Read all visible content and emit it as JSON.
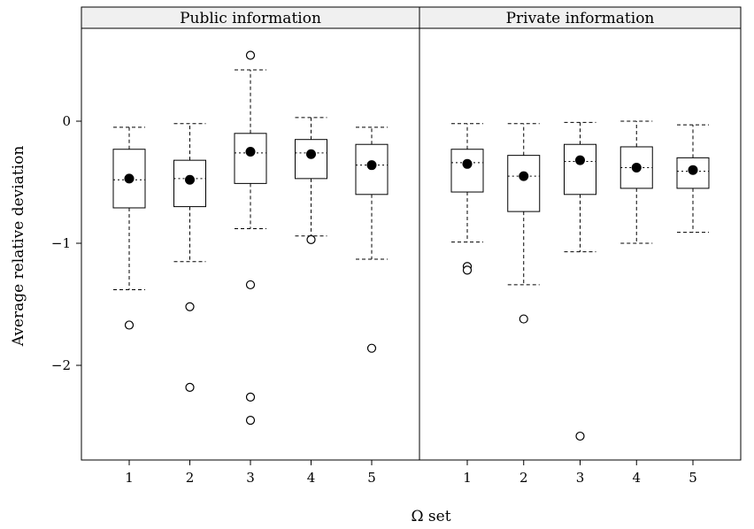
{
  "chart_data": {
    "type": "boxplot",
    "xlabel": "Ω set",
    "ylabel": "Average relative deviation",
    "ylim": [
      -2.8,
      0.75
    ],
    "y_ticks": [
      0,
      -1,
      -2
    ],
    "categories": [
      "1",
      "2",
      "3",
      "4",
      "5"
    ],
    "panels": [
      {
        "title": "Public information",
        "boxes": [
          {
            "category": "1",
            "whisker_low": -1.38,
            "q1": -0.71,
            "median": -0.48,
            "q3": -0.23,
            "whisker_high": -0.05,
            "mean": -0.47,
            "outliers": [
              -1.67
            ]
          },
          {
            "category": "2",
            "whisker_low": -1.15,
            "q1": -0.7,
            "median": -0.47,
            "q3": -0.32,
            "whisker_high": -0.02,
            "mean": -0.48,
            "outliers": [
              -1.52,
              -2.18
            ]
          },
          {
            "category": "3",
            "whisker_low": -0.88,
            "q1": -0.51,
            "median": -0.26,
            "q3": -0.1,
            "whisker_high": 0.42,
            "mean": -0.25,
            "outliers": [
              0.54,
              -1.34,
              -2.26,
              -2.45
            ]
          },
          {
            "category": "4",
            "whisker_low": -0.94,
            "q1": -0.47,
            "median": -0.26,
            "q3": -0.15,
            "whisker_high": 0.03,
            "mean": -0.27,
            "outliers": [
              -0.97
            ]
          },
          {
            "category": "5",
            "whisker_low": -1.13,
            "q1": -0.6,
            "median": -0.36,
            "q3": -0.19,
            "whisker_high": -0.05,
            "mean": -0.36,
            "outliers": [
              -1.86
            ]
          }
        ]
      },
      {
        "title": "Private information",
        "boxes": [
          {
            "category": "1",
            "whisker_low": -0.99,
            "q1": -0.58,
            "median": -0.34,
            "q3": -0.23,
            "whisker_high": -0.02,
            "mean": -0.35,
            "outliers": [
              -1.19,
              -1.22
            ]
          },
          {
            "category": "2",
            "whisker_low": -1.34,
            "q1": -0.74,
            "median": -0.45,
            "q3": -0.28,
            "whisker_high": -0.02,
            "mean": -0.45,
            "outliers": [
              -1.62
            ]
          },
          {
            "category": "3",
            "whisker_low": -1.07,
            "q1": -0.6,
            "median": -0.33,
            "q3": -0.19,
            "whisker_high": -0.01,
            "mean": -0.32,
            "outliers": [
              -2.58
            ]
          },
          {
            "category": "4",
            "whisker_low": -1.0,
            "q1": -0.55,
            "median": -0.38,
            "q3": -0.21,
            "whisker_high": 0.0,
            "mean": -0.38,
            "outliers": []
          },
          {
            "category": "5",
            "whisker_low": -0.91,
            "q1": -0.55,
            "median": -0.41,
            "q3": -0.3,
            "whisker_high": -0.03,
            "mean": -0.4,
            "outliers": []
          }
        ]
      }
    ]
  }
}
